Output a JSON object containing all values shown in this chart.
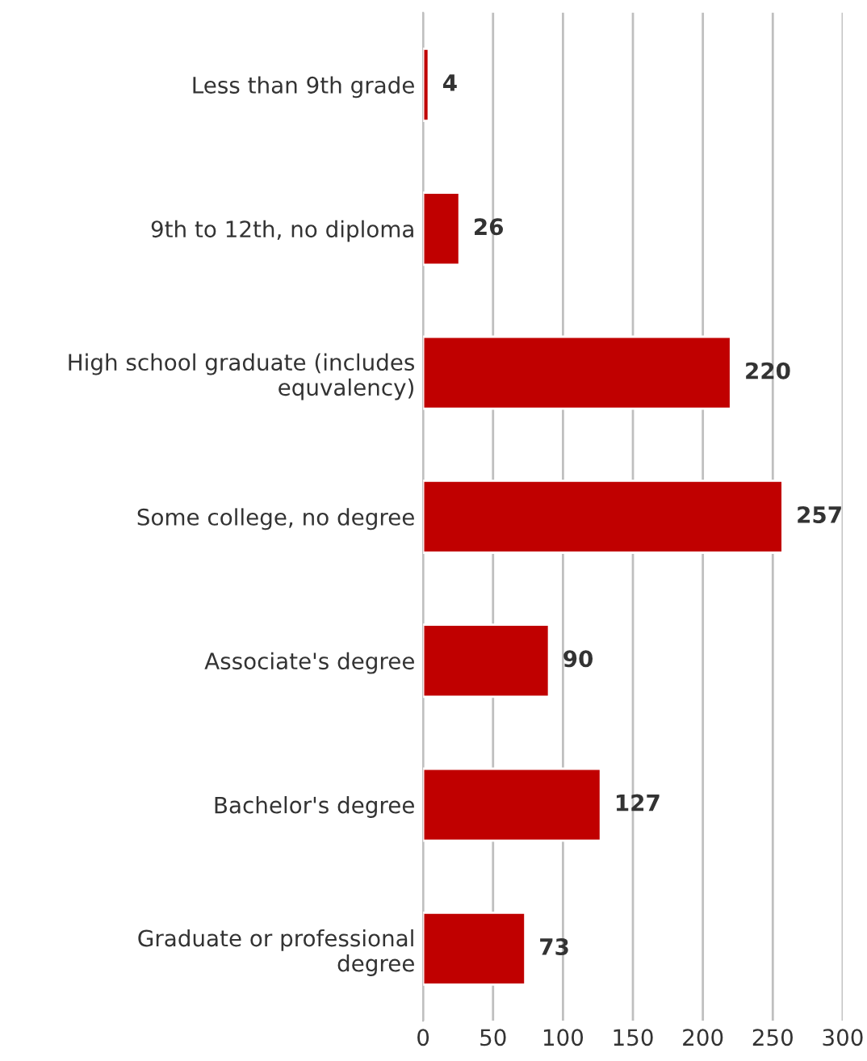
{
  "chart_data": {
    "type": "bar",
    "orientation": "horizontal",
    "categories": [
      "Less than 9th grade",
      "9th to 12th, no diploma",
      "High school graduate (includes\nequvalency)",
      "Some college, no degree",
      "Associate's degree",
      "Bachelor's degree",
      "Graduate or professional\ndegree"
    ],
    "values": [
      4,
      26,
      220,
      257,
      90,
      127,
      73
    ],
    "color": "#c00000",
    "xlim": [
      0,
      300
    ],
    "xticks": [
      0,
      50,
      100,
      150,
      200,
      250,
      300
    ],
    "grid": "x",
    "data_labels": true
  }
}
